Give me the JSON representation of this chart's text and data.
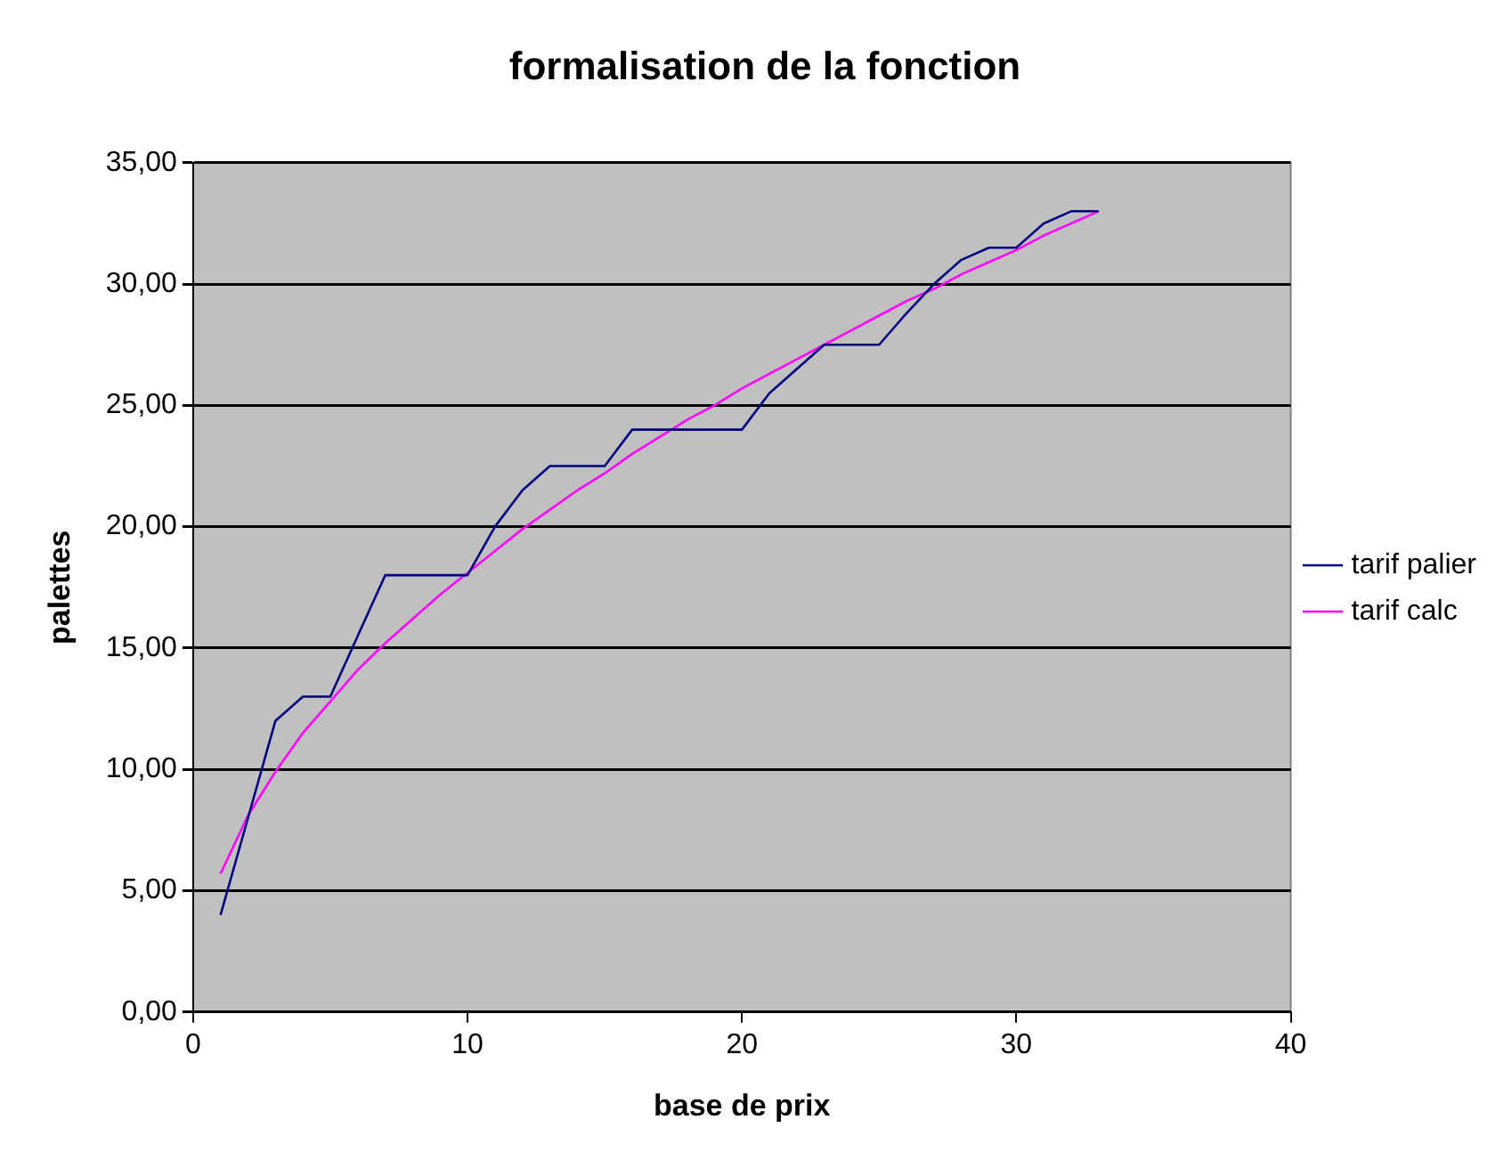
{
  "chart_data": {
    "type": "line",
    "title": "formalisation de la fonction",
    "xlabel": "base de prix",
    "ylabel": "palettes",
    "x": [
      1,
      2,
      3,
      4,
      5,
      6,
      7,
      8,
      9,
      10,
      11,
      12,
      13,
      14,
      15,
      16,
      17,
      18,
      19,
      20,
      21,
      22,
      23,
      24,
      25,
      26,
      27,
      28,
      29,
      30,
      31,
      32,
      33
    ],
    "series": [
      {
        "name": "tarif palier",
        "color": "#000080",
        "values": [
          4,
          8,
          12,
          13,
          13,
          15.5,
          18,
          18,
          18,
          18,
          20,
          21.5,
          22.5,
          22.5,
          22.5,
          24,
          24,
          24,
          24,
          24,
          25.5,
          26.5,
          27.5,
          27.5,
          27.5,
          28.8,
          30,
          31,
          31.5,
          31.5,
          32.5,
          33,
          33
        ]
      },
      {
        "name": "tarif calc",
        "color": "#ff00ff",
        "values": [
          5.7,
          8.1,
          9.9,
          11.5,
          12.8,
          14.1,
          15.2,
          16.2,
          17.2,
          18.1,
          19,
          19.9,
          20.7,
          21.5,
          22.2,
          23,
          23.7,
          24.4,
          25,
          25.7,
          26.3,
          26.9,
          27.5,
          28.1,
          28.7,
          29.3,
          29.8,
          30.4,
          30.9,
          31.4,
          32,
          32.5,
          33
        ]
      }
    ],
    "xlim": [
      0,
      40
    ],
    "xticks": [
      0,
      10,
      20,
      30,
      40
    ],
    "ylim": [
      0,
      35
    ],
    "yticks": [
      {
        "value": 0,
        "label": "0,00"
      },
      {
        "value": 5,
        "label": "5,00"
      },
      {
        "value": 10,
        "label": "10,00"
      },
      {
        "value": 15,
        "label": "15,00"
      },
      {
        "value": 20,
        "label": "20,00"
      },
      {
        "value": 25,
        "label": "25,00"
      },
      {
        "value": 30,
        "label": "30,00"
      },
      {
        "value": 35,
        "label": "35,00"
      }
    ],
    "grid": "y",
    "legend": "right",
    "marker": "none",
    "line_style": "solid"
  }
}
